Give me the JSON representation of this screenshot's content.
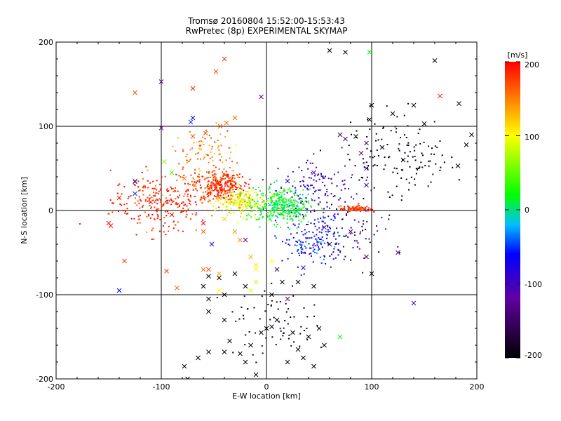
{
  "chart_data": {
    "type": "scatter",
    "title": "Tromsø 20160804 15:52:00-15:53:43",
    "subtitle": "RwPretec (8p) EXPERIMENTAL SKYMAP",
    "xlabel": "E-W location [km]",
    "ylabel": "N-S location [km]",
    "xlim": [
      -200,
      200
    ],
    "ylim": [
      -200,
      200
    ],
    "xticks": [
      "-200",
      "-100",
      "0",
      "100",
      "200"
    ],
    "yticks": [
      "-200",
      "-100",
      "0",
      "100",
      "200"
    ],
    "grid": true,
    "colorbar": {
      "label": "[m/s]",
      "range": [
        -200,
        200
      ],
      "ticks": [
        "200",
        "100",
        "0",
        "-100",
        "-200"
      ],
      "colors": [
        "#000000",
        "#6000a0",
        "#0000ff",
        "#00c0ff",
        "#00ff00",
        "#ffff00",
        "#ff0000"
      ]
    },
    "point_clusters": [
      {
        "name": "red-west",
        "center": [
          -100,
          10
        ],
        "spread": [
          38,
          28
        ],
        "count": 260,
        "velocity": 185,
        "marker": "dot"
      },
      {
        "name": "red-north-cluster",
        "center": [
          -45,
          30
        ],
        "spread": [
          20,
          15
        ],
        "count": 300,
        "velocity": 180,
        "marker": "dot"
      },
      {
        "name": "orange-north",
        "center": [
          -60,
          70
        ],
        "spread": [
          25,
          25
        ],
        "count": 90,
        "velocity": 150,
        "marker": "dot"
      },
      {
        "name": "yellow-center",
        "center": [
          -22,
          10
        ],
        "spread": [
          18,
          13
        ],
        "count": 210,
        "velocity": 95,
        "marker": "dot"
      },
      {
        "name": "green-center",
        "center": [
          15,
          5
        ],
        "spread": [
          22,
          17
        ],
        "count": 360,
        "velocity": 15,
        "marker": "dot"
      },
      {
        "name": "cyan-southeast",
        "center": [
          45,
          -35
        ],
        "spread": [
          25,
          25
        ],
        "count": 170,
        "velocity": -60,
        "marker": "dot"
      },
      {
        "name": "blue-east",
        "center": [
          50,
          25
        ],
        "spread": [
          30,
          25
        ],
        "count": 120,
        "velocity": -100,
        "marker": "dot"
      },
      {
        "name": "red-east-band",
        "center": [
          85,
          2
        ],
        "spread": [
          12,
          3
        ],
        "count": 90,
        "velocity": 180,
        "marker": "dot"
      },
      {
        "name": "black-northeast",
        "center": [
          125,
          65
        ],
        "spread": [
          40,
          40
        ],
        "count": 140,
        "velocity": -200,
        "marker": "dot"
      },
      {
        "name": "black-south",
        "center": [
          10,
          -130
        ],
        "spread": [
          40,
          35
        ],
        "count": 70,
        "velocity": -200,
        "marker": "dot"
      },
      {
        "name": "purple-east",
        "center": [
          85,
          -25
        ],
        "spread": [
          30,
          30
        ],
        "count": 60,
        "velocity": -150,
        "marker": "dot"
      }
    ],
    "cross_markers": [
      [
        -40,
        180,
        180
      ],
      [
        -125,
        140,
        170
      ],
      [
        -100,
        153,
        -120
      ],
      [
        -100,
        98,
        -120
      ],
      [
        -5,
        135,
        -120
      ],
      [
        -70,
        145,
        190
      ],
      [
        -48,
        165,
        170
      ],
      [
        60,
        190,
        -200
      ],
      [
        75,
        188,
        -200
      ],
      [
        98,
        188,
        20
      ],
      [
        160,
        178,
        -200
      ],
      [
        165,
        136,
        190
      ],
      [
        183,
        127,
        -200
      ],
      [
        195,
        90,
        -200
      ],
      [
        190,
        78,
        -200
      ],
      [
        182,
        53,
        -200
      ],
      [
        150,
        103,
        -200
      ],
      [
        140,
        125,
        -200
      ],
      [
        120,
        115,
        -200
      ],
      [
        100,
        125,
        -200
      ],
      [
        98,
        108,
        -190
      ],
      [
        85,
        88,
        -200
      ],
      [
        95,
        80,
        -150
      ],
      [
        110,
        75,
        -200
      ],
      [
        130,
        60,
        -200
      ],
      [
        90,
        68,
        -120
      ],
      [
        70,
        90,
        -150
      ],
      [
        75,
        85,
        -140
      ],
      [
        95,
        30,
        -100
      ],
      [
        95,
        50,
        -100
      ],
      [
        45,
        45,
        -120
      ],
      [
        20,
        35,
        -60
      ],
      [
        -30,
        110,
        160
      ],
      [
        -38,
        104,
        160
      ],
      [
        -44,
        100,
        170
      ],
      [
        -58,
        92,
        170
      ],
      [
        -70,
        88,
        170
      ],
      [
        -110,
        10,
        190
      ],
      [
        -125,
        35,
        190
      ],
      [
        -148,
        -18,
        190
      ],
      [
        -125,
        20,
        -50
      ],
      [
        -90,
        45,
        40
      ],
      [
        -90,
        -5,
        190
      ],
      [
        -78,
        38,
        150
      ],
      [
        -68,
        30,
        150
      ],
      [
        -55,
        25,
        150
      ],
      [
        -45,
        15,
        150
      ],
      [
        -60,
        -25,
        160
      ],
      [
        -40,
        -10,
        120
      ],
      [
        -30,
        -25,
        140
      ],
      [
        -20,
        -35,
        -100
      ],
      [
        -52,
        -40,
        -80
      ],
      [
        -55,
        -78,
        -200
      ],
      [
        -45,
        -80,
        -200
      ],
      [
        -60,
        -90,
        -200
      ],
      [
        -40,
        -100,
        -200
      ],
      [
        -55,
        -105,
        -200
      ],
      [
        -60,
        -70,
        160
      ],
      [
        -45,
        -95,
        100
      ],
      [
        -30,
        -75,
        -200
      ],
      [
        -10,
        -85,
        80
      ],
      [
        -20,
        -90,
        -200
      ],
      [
        10,
        -70,
        -160
      ],
      [
        15,
        -85,
        -200
      ],
      [
        5,
        -100,
        -200
      ],
      [
        30,
        -85,
        -200
      ],
      [
        45,
        -90,
        -200
      ],
      [
        35,
        -68,
        -60
      ],
      [
        20,
        -105,
        -120
      ],
      [
        80,
        -25,
        -150
      ],
      [
        60,
        -40,
        -150
      ],
      [
        55,
        -20,
        -100
      ],
      [
        95,
        -55,
        -150
      ],
      [
        100,
        -75,
        -200
      ],
      [
        125,
        -50,
        -100
      ],
      [
        140,
        -110,
        -100
      ],
      [
        -55,
        -120,
        -200
      ],
      [
        -40,
        -130,
        -200
      ],
      [
        -35,
        -155,
        -200
      ],
      [
        -25,
        -170,
        -200
      ],
      [
        -40,
        -168,
        -200
      ],
      [
        -55,
        -168,
        -200
      ],
      [
        -65,
        -175,
        -200
      ],
      [
        -78,
        -185,
        -200
      ],
      [
        -75,
        -200,
        -200
      ],
      [
        -20,
        -180,
        -200
      ],
      [
        -15,
        -160,
        -200
      ],
      [
        0,
        -140,
        -200
      ],
      [
        5,
        -138,
        -200
      ],
      [
        -5,
        -145,
        -200
      ],
      [
        10,
        -130,
        -200
      ],
      [
        25,
        -145,
        -200
      ],
      [
        30,
        -165,
        -200
      ],
      [
        35,
        -175,
        -200
      ],
      [
        20,
        -180,
        -200
      ],
      [
        40,
        -150,
        -200
      ],
      [
        50,
        -140,
        -200
      ],
      [
        55,
        -160,
        -200
      ],
      [
        -10,
        -195,
        -200
      ],
      [
        45,
        -185,
        -200
      ],
      [
        70,
        -150,
        20
      ],
      [
        -25,
        -35,
        150
      ],
      [
        -15,
        -55,
        130
      ],
      [
        -10,
        -65,
        110
      ],
      [
        5,
        -60,
        100
      ],
      [
        -60,
        -15,
        200
      ],
      [
        -150,
        -15,
        190
      ],
      [
        -140,
        15,
        190
      ],
      [
        -135,
        -60,
        180
      ],
      [
        -95,
        -72,
        180
      ],
      [
        -85,
        -92,
        160
      ],
      [
        -55,
        -70,
        170
      ],
      [
        -45,
        -75,
        130
      ],
      [
        -10,
        -70,
        100
      ],
      [
        -15,
        -95,
        90
      ],
      [
        -140,
        -95,
        -60
      ],
      [
        -70,
        110,
        -60
      ],
      [
        -72,
        105,
        -50
      ],
      [
        -125,
        34,
        -50
      ],
      [
        -97,
        58,
        60
      ]
    ]
  }
}
